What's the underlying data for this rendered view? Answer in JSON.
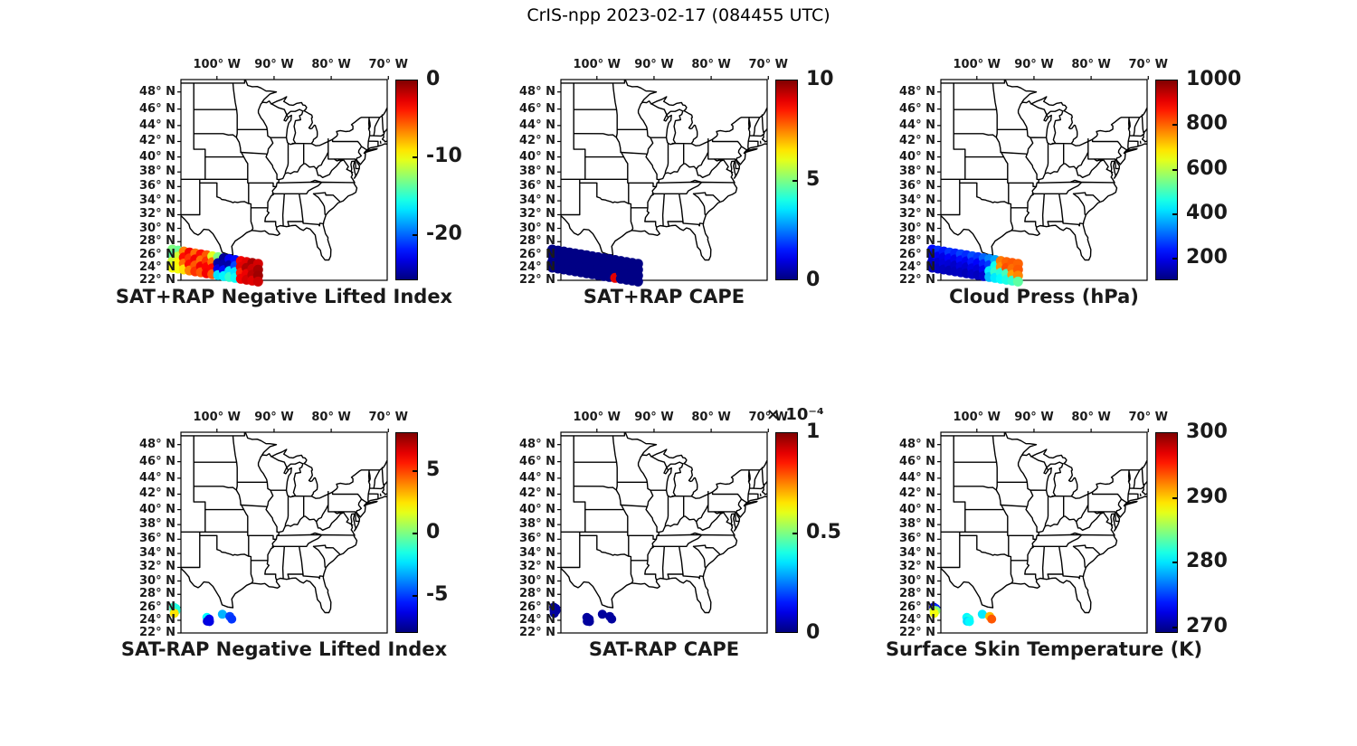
{
  "figure_title": "CrIS-npp 2023-02-17 (084455 UTC)",
  "chart_data": {
    "type": "scatter",
    "colormap": "jet",
    "map_extent": {
      "lon_min": -106.3,
      "lon_max": -70.2,
      "lat_min": 22,
      "lat_max": 49.4
    },
    "axes": {
      "lon_tick_values": [
        -100,
        -90,
        -80,
        -70
      ],
      "lon_tick_labels": [
        "100° W",
        "90° W",
        "80° W",
        "70° W"
      ],
      "lat_tick_values": [
        48,
        46,
        44,
        42,
        40,
        38,
        36,
        34,
        32,
        30,
        28,
        26,
        24,
        22
      ],
      "lat_tick_labels": [
        "48° N",
        "46° N",
        "44° N",
        "42° N",
        "40° N",
        "38° N",
        "36° N",
        "34° N",
        "32° N",
        "30° N",
        "28° N",
        "26° N",
        "24° N",
        "22° N"
      ]
    },
    "shared_points": {
      "swath": [
        [
          -107.8,
          26.8
        ],
        [
          -107.8,
          25.87
        ],
        [
          -107.8,
          24.93
        ],
        [
          -107.8,
          24.0
        ],
        [
          -106.8,
          26.65
        ],
        [
          -106.8,
          25.72
        ],
        [
          -106.8,
          24.78
        ],
        [
          -106.8,
          23.85
        ],
        [
          -105.8,
          26.51
        ],
        [
          -105.8,
          25.58
        ],
        [
          -105.8,
          24.64
        ],
        [
          -105.8,
          23.71
        ],
        [
          -104.8,
          26.36
        ],
        [
          -104.8,
          25.43
        ],
        [
          -104.8,
          24.49
        ],
        [
          -104.8,
          23.56
        ],
        [
          -103.8,
          26.21
        ],
        [
          -103.8,
          25.28
        ],
        [
          -103.8,
          24.34
        ],
        [
          -103.8,
          23.41
        ],
        [
          -102.8,
          26.07
        ],
        [
          -102.8,
          25.14
        ],
        [
          -102.8,
          24.2
        ],
        [
          -102.8,
          23.27
        ],
        [
          -101.8,
          25.92
        ],
        [
          -101.8,
          24.99
        ],
        [
          -101.8,
          24.05
        ],
        [
          -101.8,
          23.12
        ],
        [
          -100.8,
          25.77
        ],
        [
          -100.8,
          24.84
        ],
        [
          -100.8,
          23.9
        ],
        [
          -100.8,
          22.97
        ],
        [
          -99.8,
          25.63
        ],
        [
          -99.8,
          24.7
        ],
        [
          -99.8,
          23.76
        ],
        [
          -99.8,
          22.83
        ],
        [
          -98.8,
          25.48
        ],
        [
          -98.8,
          24.55
        ],
        [
          -98.8,
          23.61
        ],
        [
          -98.8,
          22.68
        ],
        [
          -97.8,
          25.33
        ],
        [
          -97.8,
          24.4
        ],
        [
          -97.8,
          23.46
        ],
        [
          -97.8,
          22.53
        ],
        [
          -96.8,
          25.19
        ],
        [
          -96.8,
          24.26
        ],
        [
          -96.8,
          23.32
        ],
        [
          -96.8,
          22.39
        ],
        [
          -95.8,
          25.04
        ],
        [
          -95.8,
          24.11
        ],
        [
          -95.8,
          23.17
        ],
        [
          -95.8,
          22.24
        ],
        [
          -94.8,
          24.89
        ],
        [
          -94.8,
          23.96
        ],
        [
          -94.8,
          23.02
        ],
        [
          -94.8,
          22.09
        ],
        [
          -93.8,
          24.75
        ],
        [
          -93.8,
          23.82
        ],
        [
          -93.8,
          22.88
        ],
        [
          -93.8,
          21.95
        ],
        [
          -92.8,
          24.6
        ],
        [
          -92.8,
          23.67
        ],
        [
          -92.8,
          22.73
        ],
        [
          -92.8,
          21.8
        ]
      ],
      "clusters": [
        [
          -107.55,
          26.05
        ],
        [
          -107.2,
          25.85
        ],
        [
          -107.5,
          25.55
        ],
        [
          -107.15,
          25.5
        ],
        [
          -107.45,
          25.1
        ],
        [
          -101.75,
          24.45
        ],
        [
          -101.35,
          24.2
        ],
        [
          -101.7,
          23.85
        ],
        [
          -101.3,
          23.8
        ],
        [
          -99.05,
          24.95
        ],
        [
          -97.75,
          24.6
        ],
        [
          -97.4,
          24.2
        ]
      ]
    },
    "panels": [
      {
        "id": "sat-plus-rap-negative-lifted-index",
        "title": "SAT+RAP Negative Lifted Index",
        "points_ref": "swath",
        "clim": [
          -26,
          0
        ],
        "cbar_ticks": [
          0,
          -10,
          -20
        ],
        "values": [
          -13,
          -14,
          -11,
          -10,
          -13.5,
          -11,
          -9.5,
          -10,
          -6.5,
          -3.5,
          -6,
          -9,
          -3,
          -4.5,
          -3.5,
          -6.5,
          -6,
          -3,
          -5.5,
          -4.5,
          -3.5,
          -6,
          -3,
          -5.5,
          -5.5,
          -4.5,
          -3.2,
          -3,
          -10.5,
          -6,
          -3.2,
          -5.5,
          -13,
          -25,
          -23.5,
          -17,
          -25.5,
          -25,
          -22.5,
          -16.5,
          -23,
          -25,
          -17,
          -15,
          -22.5,
          -21,
          -17,
          -16,
          -3,
          -2.5,
          -4,
          -3,
          -2.5,
          -1.2,
          -2.8,
          -2.2,
          -1,
          -2,
          -1.5,
          -2.5,
          -2.2,
          -1,
          -0.8,
          -2
        ]
      },
      {
        "id": "sat-plus-rap-cape",
        "title": "SAT+RAP CAPE",
        "points_ref": "swath",
        "clim": [
          0,
          10
        ],
        "cbar_ticks": [
          10,
          5,
          0
        ],
        "values": [
          0.05,
          0.05,
          0.05,
          0.05,
          0.05,
          0.05,
          0.05,
          0.05,
          0.05,
          0.05,
          0.05,
          0.05,
          0.05,
          0.05,
          0.05,
          0.05,
          0.05,
          0.05,
          0.05,
          0.05,
          0.05,
          0.05,
          0.05,
          0.05,
          0.05,
          0.05,
          0.05,
          0.05,
          0.05,
          0.05,
          0.05,
          0.05,
          0.05,
          0.05,
          0.05,
          0.05,
          0.05,
          0.05,
          0.05,
          0.05,
          0.05,
          0.05,
          0.05,
          0.05,
          0.05,
          0.05,
          0.05,
          9,
          0.05,
          0.05,
          0.05,
          0.05,
          0.05,
          0.05,
          0.05,
          0.05,
          0.05,
          0.05,
          0.05,
          0.05,
          0.05,
          0.05,
          0.05,
          0.05
        ]
      },
      {
        "id": "cloud-press",
        "title": "Cloud Press (hPa)",
        "points_ref": "swath",
        "clim": [
          100,
          1000
        ],
        "cbar_ticks": [
          1000,
          800,
          600,
          400,
          200
        ],
        "values": [
          220,
          180,
          160,
          150,
          250,
          200,
          170,
          160,
          230,
          190,
          180,
          155,
          260,
          210,
          175,
          150,
          240,
          195,
          165,
          155,
          270,
          220,
          185,
          160,
          250,
          200,
          170,
          150,
          280,
          230,
          190,
          165,
          260,
          210,
          180,
          155,
          300,
          240,
          200,
          170,
          330,
          260,
          420,
          380,
          360,
          450,
          480,
          420,
          780,
          760,
          470,
          440,
          800,
          820,
          500,
          460,
          810,
          790,
          750,
          480,
          800,
          810,
          770,
          520
        ]
      },
      {
        "id": "sat-minus-rap-negative-lifted-index",
        "title": "SAT-RAP Negative Lifted Index",
        "points_ref": "clusters",
        "clim": [
          -8,
          8
        ],
        "cbar_ticks": [
          5,
          0,
          -5
        ],
        "values": [
          -1.2,
          -1.6,
          -1.0,
          -1.4,
          2.4,
          -2.0,
          -6.2,
          -6.6,
          -6.4,
          -3.2,
          -5.0,
          -5.2
        ]
      },
      {
        "id": "sat-minus-rap-cape",
        "title": "SAT-RAP CAPE",
        "points_ref": "clusters",
        "clim": [
          0,
          1
        ],
        "cbar_exponent": "× 10⁻⁴",
        "cbar_ticks": [
          1,
          0.5,
          0
        ],
        "values": [
          0.03,
          0.03,
          0.03,
          0.03,
          0.03,
          0.03,
          0.03,
          0.03,
          0.03,
          0.03,
          0.03,
          0.03
        ]
      },
      {
        "id": "surface-skin-temperature",
        "title": "Surface Skin Temperature (K)",
        "points_ref": "clusters",
        "clim": [
          269,
          300
        ],
        "cbar_ticks": [
          300,
          290,
          280,
          270
        ],
        "values": [
          271.5,
          274,
          286.5,
          285,
          288,
          280.5,
          281.5,
          279.5,
          280.5,
          280,
          290.5,
          293.5
        ]
      }
    ]
  }
}
